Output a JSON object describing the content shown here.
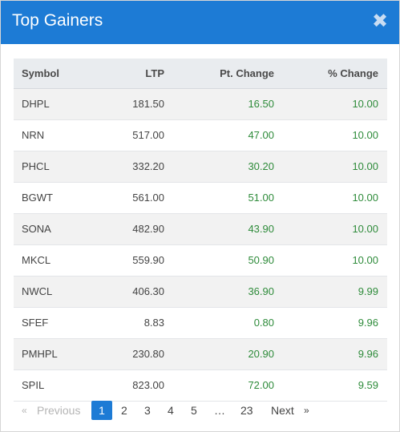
{
  "dialog": {
    "title": "Top Gainers",
    "close_glyph": "✖"
  },
  "table": {
    "headers": {
      "symbol": "Symbol",
      "ltp": "LTP",
      "pt_change": "Pt. Change",
      "pct_change": "% Change"
    },
    "rows": [
      {
        "symbol": "DHPL",
        "ltp": "181.50",
        "pt_change": "16.50",
        "pct_change": "10.00"
      },
      {
        "symbol": "NRN",
        "ltp": "517.00",
        "pt_change": "47.00",
        "pct_change": "10.00"
      },
      {
        "symbol": "PHCL",
        "ltp": "332.20",
        "pt_change": "30.20",
        "pct_change": "10.00"
      },
      {
        "symbol": "BGWT",
        "ltp": "561.00",
        "pt_change": "51.00",
        "pct_change": "10.00"
      },
      {
        "symbol": "SONA",
        "ltp": "482.90",
        "pt_change": "43.90",
        "pct_change": "10.00"
      },
      {
        "symbol": "MKCL",
        "ltp": "559.90",
        "pt_change": "50.90",
        "pct_change": "10.00"
      },
      {
        "symbol": "NWCL",
        "ltp": "406.30",
        "pt_change": "36.90",
        "pct_change": "9.99"
      },
      {
        "symbol": "SFEF",
        "ltp": "8.83",
        "pt_change": "0.80",
        "pct_change": "9.96"
      },
      {
        "symbol": "PMHPL",
        "ltp": "230.80",
        "pt_change": "20.90",
        "pct_change": "9.96"
      },
      {
        "symbol": "SPIL",
        "ltp": "823.00",
        "pt_change": "72.00",
        "pct_change": "9.59"
      }
    ]
  },
  "pagination": {
    "prev_arrow": "«",
    "previous_label": "Previous",
    "pages": [
      "1",
      "2",
      "3",
      "4",
      "5"
    ],
    "ellipsis": "…",
    "last_page": "23",
    "next_label": "Next",
    "next_arrow": "»",
    "current_page": "1"
  },
  "colors": {
    "header_bg": "#1d7bd5",
    "positive_text": "#2e8b3a",
    "active_page_bg": "#1d7bd5"
  }
}
